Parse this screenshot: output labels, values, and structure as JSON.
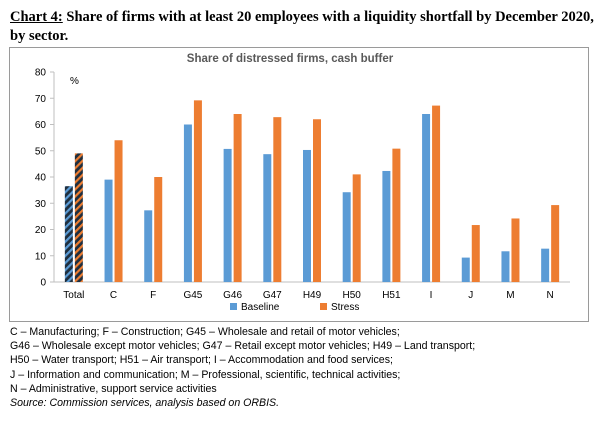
{
  "header": {
    "label": "Chart 4:",
    "text": " Share of firms with at least 20 employees with a liquidity shortfall by December 2020, by sector."
  },
  "chart_data": {
    "type": "bar",
    "title": "Share of distressed firms, cash buffer",
    "ylabel": "%",
    "xlabel": "",
    "ylim": [
      0,
      80
    ],
    "yticks": [
      0,
      10,
      20,
      30,
      40,
      50,
      60,
      70,
      80
    ],
    "categories": [
      "Total",
      "C",
      "F",
      "G45",
      "G46",
      "G47",
      "H49",
      "H50",
      "H51",
      "I",
      "J",
      "M",
      "N"
    ],
    "series": [
      {
        "name": "Baseline",
        "color": "#5b9bd5",
        "values": [
          36.5,
          39,
          27.3,
          60,
          50.7,
          48.7,
          50.3,
          34.2,
          42.3,
          64,
          9.3,
          11.7,
          12.7
        ]
      },
      {
        "name": "Stress",
        "color": "#ed7d31",
        "values": [
          49,
          54,
          40,
          69.2,
          64,
          62.8,
          62,
          41,
          50.8,
          67.2,
          21.7,
          24.2,
          29.3
        ]
      }
    ],
    "hatched_categories": [
      "Total"
    ],
    "hatch_color": "#1f2f3f",
    "grid": false,
    "legend": "bottom-center"
  },
  "footnotes": {
    "lines": [
      "C – Manufacturing; F – Construction; G45 – Wholesale and retail of motor vehicles;",
      "G46 – Wholesale except motor vehicles; G47 – Retail except motor vehicles; H49 – Land transport;",
      "H50 – Water transport; H51 – Air transport; I – Accommodation and food services;",
      "J – Information and communication; M – Professional, scientific, technical activities;",
      "N – Administrative, support service activities"
    ],
    "source": "Source: Commission services, analysis based on ORBIS."
  }
}
